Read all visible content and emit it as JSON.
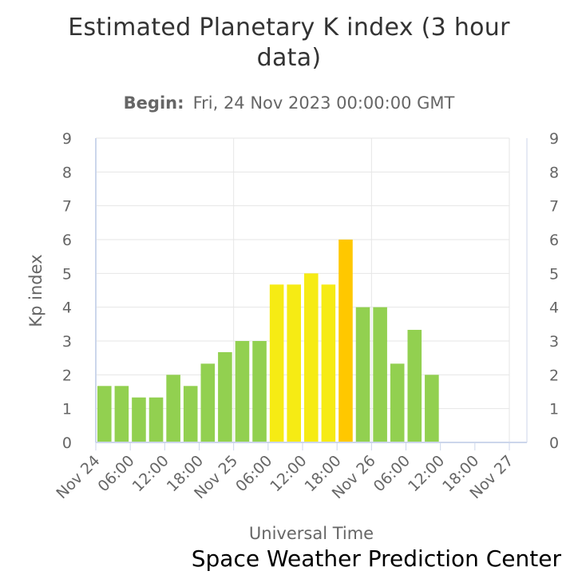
{
  "chart_data": {
    "type": "bar",
    "title_line1": "Estimated Planetary K index (3 hour",
    "title_line2": "data)",
    "subtitle_label": "Begin:",
    "subtitle_value": "Fri, 24 Nov 2023 00:00:00 GMT",
    "ylabel": "Kp index",
    "xlabel": "Universal Time",
    "credit": "Space Weather Prediction Center",
    "ylim": [
      0,
      9
    ],
    "yticks": [
      "0",
      "1",
      "2",
      "3",
      "4",
      "5",
      "6",
      "7",
      "8",
      "9"
    ],
    "xticks": [
      {
        "hour": 0,
        "label": "Nov 24"
      },
      {
        "hour": 6,
        "label": "06:00"
      },
      {
        "hour": 12,
        "label": "12:00"
      },
      {
        "hour": 18,
        "label": "18:00"
      },
      {
        "hour": 24,
        "label": "Nov 25"
      },
      {
        "hour": 30,
        "label": "06:00"
      },
      {
        "hour": 36,
        "label": "12:00"
      },
      {
        "hour": 42,
        "label": "18:00"
      },
      {
        "hour": 48,
        "label": "Nov 26"
      },
      {
        "hour": 54,
        "label": "06:00"
      },
      {
        "hour": 60,
        "label": "12:00"
      },
      {
        "hour": 66,
        "label": "18:00"
      },
      {
        "hour": 72,
        "label": "Nov 27"
      }
    ],
    "xlim_hours": [
      0,
      72
    ],
    "grid": true,
    "legend": "none",
    "x": [
      "Nov 24 00:00",
      "Nov 24 03:00",
      "Nov 24 06:00",
      "Nov 24 09:00",
      "Nov 24 12:00",
      "Nov 24 15:00",
      "Nov 24 18:00",
      "Nov 24 21:00",
      "Nov 25 00:00",
      "Nov 25 03:00",
      "Nov 25 06:00",
      "Nov 25 09:00",
      "Nov 25 12:00",
      "Nov 25 15:00",
      "Nov 25 18:00",
      "Nov 25 21:00",
      "Nov 26 00:00",
      "Nov 26 03:00",
      "Nov 26 06:00",
      "Nov 26 09:00"
    ],
    "values": [
      1.67,
      1.67,
      1.33,
      1.33,
      2.0,
      1.67,
      2.33,
      2.67,
      3.0,
      3.0,
      4.67,
      4.67,
      5.0,
      4.67,
      6.0,
      4.0,
      4.0,
      2.33,
      3.33,
      2.0
    ],
    "colors": {
      "quiet": "#92d050",
      "storm_g1": "#f6eb14",
      "storm_g2": "#ffc800"
    }
  }
}
